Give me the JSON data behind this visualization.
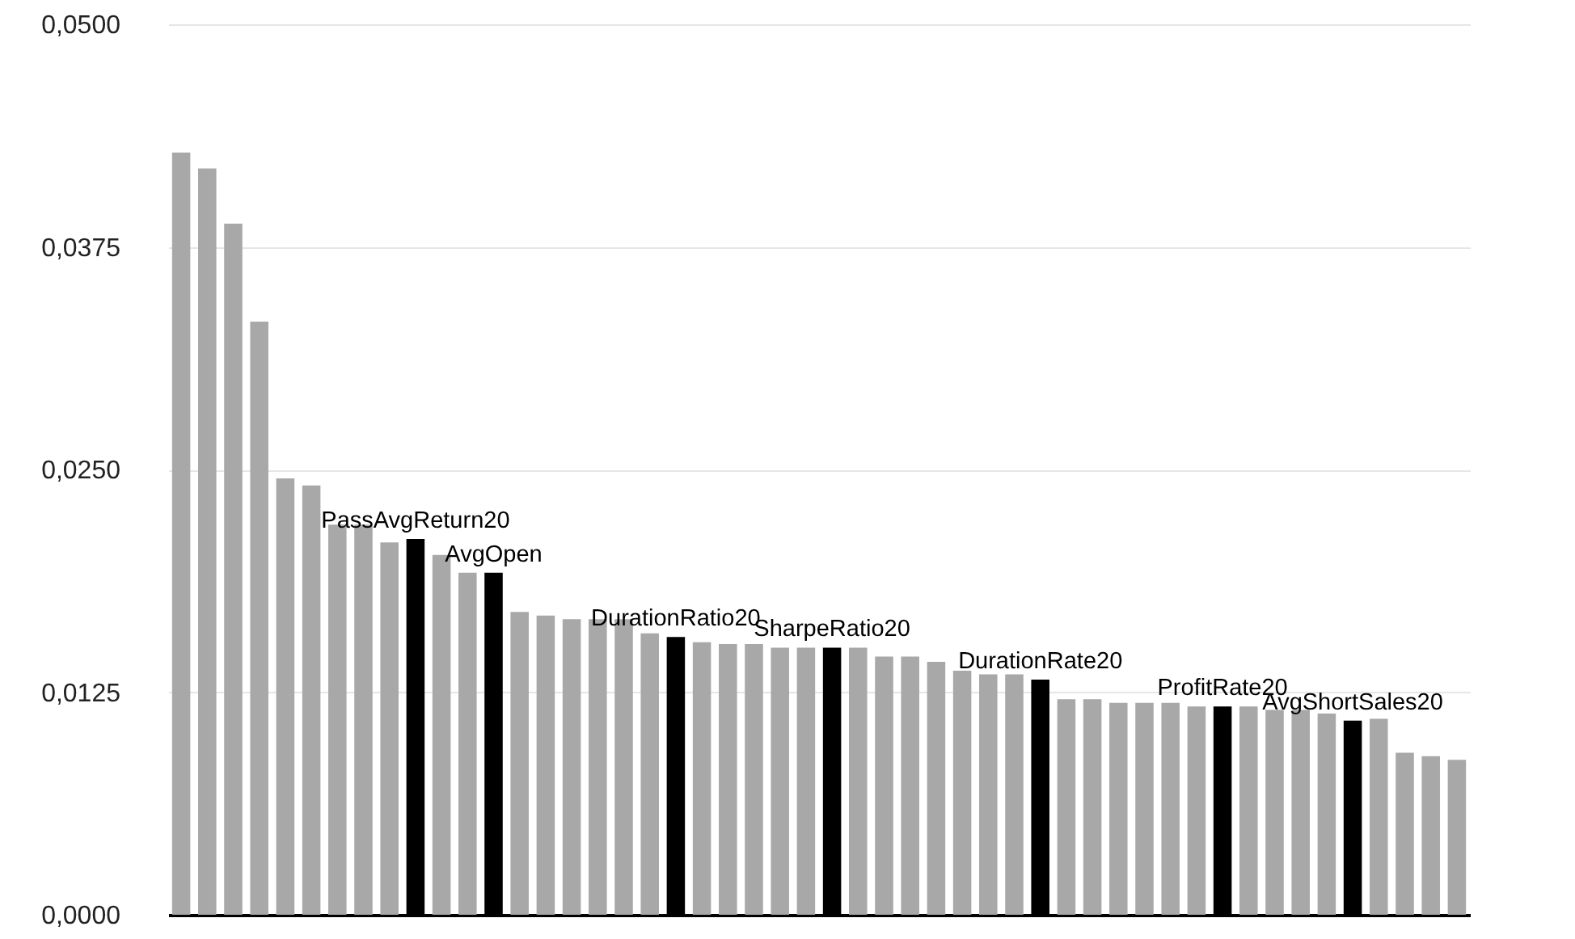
{
  "chart_data": {
    "type": "bar",
    "categories": [
      null,
      null,
      null,
      null,
      null,
      null,
      null,
      null,
      null,
      null,
      null,
      null,
      null,
      null,
      null,
      null,
      null,
      null,
      null,
      null,
      null,
      null,
      null,
      null,
      null,
      null,
      null,
      null,
      null,
      null,
      null,
      null,
      null,
      null,
      null,
      null,
      null,
      null,
      null,
      null,
      null,
      null,
      null,
      null,
      null,
      null,
      null,
      null,
      null,
      null
    ],
    "values": [
      0.0428,
      0.0419,
      0.0388,
      0.0333,
      0.0245,
      0.0241,
      0.0219,
      0.0219,
      0.0209,
      0.0211,
      0.0202,
      0.0192,
      0.0192,
      0.017,
      0.0168,
      0.0166,
      0.0166,
      0.0166,
      0.0158,
      0.0156,
      0.0153,
      0.0152,
      0.0152,
      0.015,
      0.015,
      0.015,
      0.015,
      0.0145,
      0.0145,
      0.0142,
      0.0137,
      0.0135,
      0.0135,
      0.0132,
      0.0121,
      0.0121,
      0.0119,
      0.0119,
      0.0119,
      0.0117,
      0.0117,
      0.0117,
      0.0115,
      0.0115,
      0.0113,
      0.0109,
      0.011,
      0.0091,
      0.0089,
      0.0087
    ],
    "colors": [
      "#a8a8a8",
      "#a8a8a8",
      "#a8a8a8",
      "#a8a8a8",
      "#a8a8a8",
      "#a8a8a8",
      "#a8a8a8",
      "#a8a8a8",
      "#a8a8a8",
      "#000000",
      "#a8a8a8",
      "#a8a8a8",
      "#000000",
      "#a8a8a8",
      "#a8a8a8",
      "#a8a8a8",
      "#a8a8a8",
      "#a8a8a8",
      "#a8a8a8",
      "#000000",
      "#a8a8a8",
      "#a8a8a8",
      "#a8a8a8",
      "#a8a8a8",
      "#a8a8a8",
      "#000000",
      "#a8a8a8",
      "#a8a8a8",
      "#a8a8a8",
      "#a8a8a8",
      "#a8a8a8",
      "#a8a8a8",
      "#a8a8a8",
      "#000000",
      "#a8a8a8",
      "#a8a8a8",
      "#a8a8a8",
      "#a8a8a8",
      "#a8a8a8",
      "#a8a8a8",
      "#000000",
      "#a8a8a8",
      "#a8a8a8",
      "#a8a8a8",
      "#a8a8a8",
      "#000000",
      "#a8a8a8",
      "#a8a8a8",
      "#a8a8a8",
      "#a8a8a8"
    ],
    "value_labels": [
      null,
      null,
      null,
      null,
      null,
      null,
      null,
      null,
      null,
      "PassAvgReturn20",
      null,
      null,
      "AvgOpen",
      null,
      null,
      null,
      null,
      null,
      null,
      "DurationRatio20",
      null,
      null,
      null,
      null,
      null,
      "SharpeRatio20",
      null,
      null,
      null,
      null,
      null,
      null,
      null,
      "DurationRate20",
      null,
      null,
      null,
      null,
      null,
      null,
      "ProfitRate20",
      null,
      null,
      null,
      null,
      "AvgShortSales20",
      null,
      null,
      null,
      null
    ],
    "ylim": [
      0,
      0.05
    ],
    "yticks": [
      {
        "value": 0,
        "label": "0,0000"
      },
      {
        "value": 0.0125,
        "label": "0,0125"
      },
      {
        "value": 0.025,
        "label": "0,0250"
      },
      {
        "value": 0.0375,
        "label": "0,0375"
      },
      {
        "value": 0.05,
        "label": "0,0500"
      }
    ],
    "grid": "y"
  }
}
